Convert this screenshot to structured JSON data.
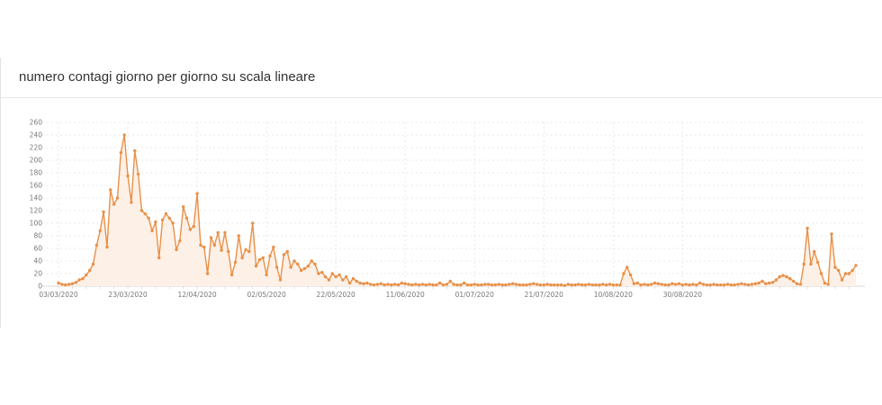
{
  "card": {
    "title": "numero contagi giorno per giorno su scala lineare"
  },
  "colors": {
    "line": "#e8914a",
    "area": "#fdf0e6",
    "grid": "#e2e2e2",
    "axis": "#cccccc"
  },
  "chart_data": {
    "type": "area",
    "title": "numero contagi giorno per giorno su scala lineare",
    "xlabel": "",
    "ylabel": "",
    "ylim": [
      0,
      260
    ],
    "yticks": [
      0,
      20,
      40,
      60,
      80,
      100,
      120,
      140,
      160,
      180,
      200,
      220,
      240,
      260
    ],
    "xtick_labels": [
      "03/03/2020",
      "23/03/2020",
      "12/04/2020",
      "02/05/2020",
      "22/05/2020",
      "11/06/2020",
      "01/07/2020",
      "21/07/2020",
      "10/08/2020",
      "30/08/2020"
    ],
    "grid": true,
    "series": [
      {
        "x_start": "03/03/2020",
        "interval": "1 day",
        "values": [
          5,
          3,
          2,
          3,
          4,
          6,
          10,
          12,
          18,
          25,
          35,
          65,
          88,
          118,
          62,
          153,
          130,
          140,
          212,
          240,
          175,
          133,
          215,
          178,
          120,
          115,
          108,
          88,
          102,
          45,
          105,
          115,
          108,
          100,
          58,
          72,
          126,
          108,
          90,
          95,
          147,
          65,
          62,
          20,
          77,
          65,
          85,
          57,
          85,
          55,
          18,
          38,
          80,
          45,
          58,
          55,
          100,
          32,
          42,
          45,
          18,
          48,
          62,
          30,
          10,
          50,
          55,
          30,
          40,
          35,
          25,
          28,
          32,
          40,
          35,
          20,
          22,
          15,
          10,
          20,
          15,
          18,
          10,
          15,
          5,
          12,
          8,
          5,
          4,
          5,
          3,
          2,
          3,
          4,
          2,
          3,
          2,
          3,
          2,
          5,
          4,
          3,
          2,
          3,
          2,
          3,
          2,
          3,
          2,
          2,
          5,
          2,
          3,
          8,
          3,
          2,
          2,
          5,
          2,
          2,
          3,
          2,
          2,
          3,
          3,
          2,
          2,
          3,
          2,
          2,
          3,
          4,
          3,
          2,
          2,
          2,
          3,
          4,
          3,
          2,
          2,
          3,
          2,
          2,
          2,
          2,
          1,
          3,
          2,
          2,
          3,
          2,
          2,
          3,
          2,
          2,
          2,
          3,
          2,
          3,
          2,
          2,
          2,
          20,
          30,
          18,
          4,
          5,
          2,
          3,
          2,
          3,
          5,
          4,
          3,
          2,
          2,
          4,
          3,
          4,
          2,
          3,
          2,
          3,
          2,
          5,
          3,
          2,
          2,
          3,
          2,
          2,
          2,
          3,
          2,
          2,
          3,
          4,
          3,
          2,
          3,
          4,
          5,
          8,
          4,
          5,
          6,
          10,
          15,
          17,
          15,
          12,
          8,
          4,
          3,
          35,
          92,
          35,
          55,
          38,
          20,
          5,
          3,
          83,
          30,
          25,
          10,
          20,
          20,
          25,
          33
        ]
      }
    ]
  }
}
